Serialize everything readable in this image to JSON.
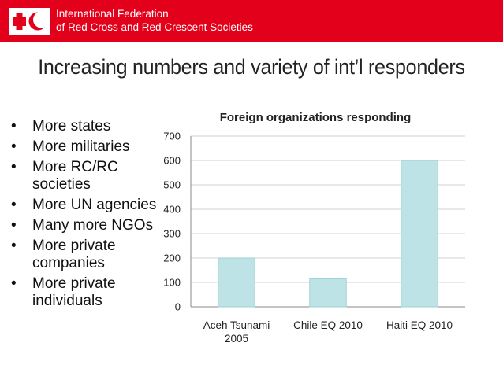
{
  "header": {
    "org_line1": "International Federation",
    "org_line2": "of Red Cross and Red Crescent Societies",
    "logo_icon": "red-cross-and-red-crescent-logo-icon",
    "color": "#e3001b"
  },
  "slide": {
    "title": "Increasing numbers and variety of int’l responders"
  },
  "bullets": [
    "More states",
    "More militaries",
    "More RC/RC societies",
    "More UN agencies",
    "Many more NGOs",
    "More private companies",
    "More private individuals"
  ],
  "chart_data": {
    "type": "bar",
    "title": "Foreign organizations responding",
    "categories": [
      "Aceh Tsunami 2005",
      "Chile EQ 2010",
      "Haiti EQ 2010"
    ],
    "category_lines": [
      [
        "Aceh Tsunami",
        "2005"
      ],
      [
        "Chile EQ 2010"
      ],
      [
        "Haiti EQ 2010"
      ]
    ],
    "values": [
      200,
      115,
      600
    ],
    "ylim": [
      0,
      700
    ],
    "yticks": [
      0,
      100,
      200,
      300,
      400,
      500,
      600,
      700
    ],
    "grid": true,
    "legend": "none",
    "bar_color": "#bde3e6",
    "bar_edge_color": "#9fd0d4"
  }
}
